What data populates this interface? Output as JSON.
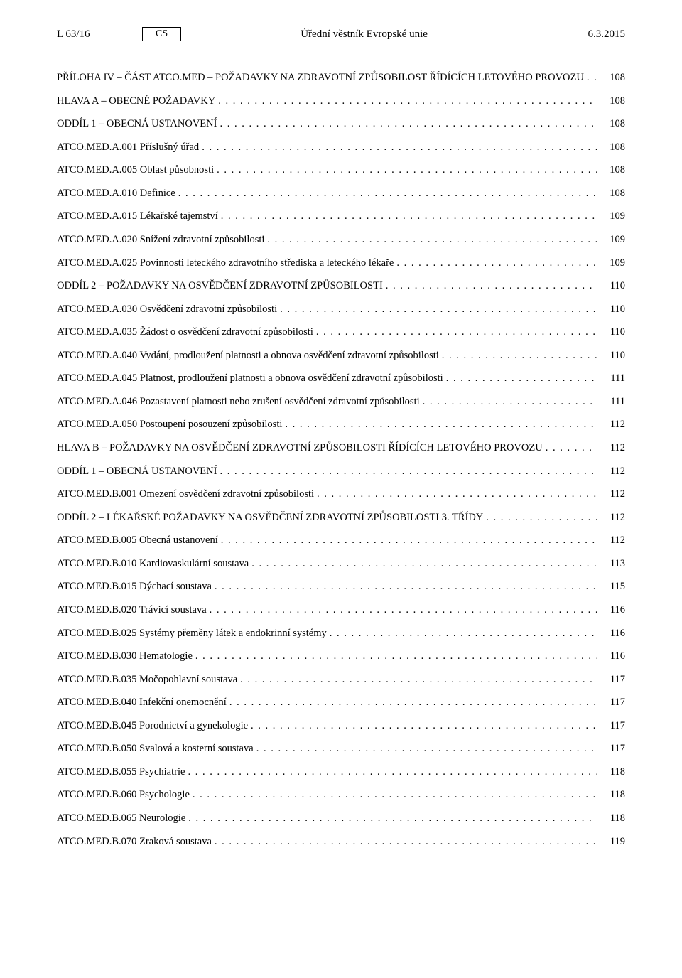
{
  "header": {
    "left": "L 63/16",
    "lang": "CS",
    "center": "Úřední věstník Evropské unie",
    "right": "6.3.2015"
  },
  "toc": [
    {
      "label": "PŘÍLOHA IV – ČÁST ATCO.MED – POŽADAVKY NA ZDRAVOTNÍ ZPŮSOBILOST ŘÍDÍCÍCH LETOVÉHO PROVOZU",
      "page": "108"
    },
    {
      "label": "HLAVA A – OBECNÉ POŽADAVKY",
      "page": "108"
    },
    {
      "label": "ODDÍL 1 – OBECNÁ USTANOVENÍ",
      "page": "108"
    },
    {
      "label": "ATCO.MED.A.001 Příslušný úřad",
      "page": "108"
    },
    {
      "label": "ATCO.MED.A.005 Oblast působnosti",
      "page": "108"
    },
    {
      "label": "ATCO.MED.A.010 Definice",
      "page": "108"
    },
    {
      "label": "ATCO.MED.A.015 Lékařské tajemství",
      "page": "109"
    },
    {
      "label": "ATCO.MED.A.020 Snížení zdravotní způsobilosti",
      "page": "109"
    },
    {
      "label": "ATCO.MED.A.025 Povinnosti leteckého zdravotního střediska a leteckého lékaře",
      "page": "109"
    },
    {
      "label": "ODDÍL 2 – POŽADAVKY NA OSVĚDČENÍ ZDRAVOTNÍ ZPŮSOBILOSTI",
      "page": "110"
    },
    {
      "label": "ATCO.MED.A.030 Osvědčení zdravotní způsobilosti",
      "page": "110"
    },
    {
      "label": "ATCO.MED.A.035 Žádost o osvědčení zdravotní způsobilosti",
      "page": "110"
    },
    {
      "label": "ATCO.MED.A.040 Vydání, prodloužení platnosti a obnova osvědčení zdravotní způsobilosti",
      "page": "110"
    },
    {
      "label": "ATCO.MED.A.045 Platnost, prodloužení platnosti a obnova osvědčení zdravotní způsobilosti",
      "page": "111"
    },
    {
      "label": "ATCO.MED.A.046 Pozastavení platnosti nebo zrušení osvědčení zdravotní způsobilosti",
      "page": "111"
    },
    {
      "label": "ATCO.MED.A.050 Postoupení posouzení způsobilosti",
      "page": "112"
    },
    {
      "label": "HLAVA B – POŽADAVKY NA OSVĚDČENÍ ZDRAVOTNÍ ZPŮSOBILOSTI ŘÍDÍCÍCH LETOVÉHO PROVOZU",
      "page": "112"
    },
    {
      "label": "ODDÍL 1 – OBECNÁ USTANOVENÍ",
      "page": "112"
    },
    {
      "label": "ATCO.MED.B.001 Omezení osvědčení zdravotní způsobilosti",
      "page": "112"
    },
    {
      "label": "ODDÍL 2 – LÉKAŘSKÉ POŽADAVKY NA OSVĚDČENÍ ZDRAVOTNÍ ZPŮSOBILOSTI 3. TŘÍDY",
      "page": "112"
    },
    {
      "label": "ATCO.MED.B.005 Obecná ustanovení",
      "page": "112"
    },
    {
      "label": "ATCO.MED.B.010 Kardiovaskulární soustava",
      "page": "113"
    },
    {
      "label": "ATCO.MED.B.015 Dýchací soustava",
      "page": "115"
    },
    {
      "label": "ATCO.MED.B.020 Trávicí soustava",
      "page": "116"
    },
    {
      "label": "ATCO.MED.B.025 Systémy přeměny látek a endokrinní systémy",
      "page": "116"
    },
    {
      "label": "ATCO.MED.B.030 Hematologie",
      "page": "116"
    },
    {
      "label": "ATCO.MED.B.035 Močopohlavní soustava",
      "page": "117"
    },
    {
      "label": "ATCO.MED.B.040 Infekční onemocnění",
      "page": "117"
    },
    {
      "label": "ATCO.MED.B.045 Porodnictví a gynekologie",
      "page": "117"
    },
    {
      "label": "ATCO.MED.B.050 Svalová a kosterní soustava",
      "page": "117"
    },
    {
      "label": "ATCO.MED.B.055 Psychiatrie",
      "page": "118"
    },
    {
      "label": "ATCO.MED.B.060 Psychologie",
      "page": "118"
    },
    {
      "label": "ATCO.MED.B.065 Neurologie",
      "page": "118"
    },
    {
      "label": "ATCO.MED.B.070 Zraková soustava",
      "page": "119"
    }
  ]
}
